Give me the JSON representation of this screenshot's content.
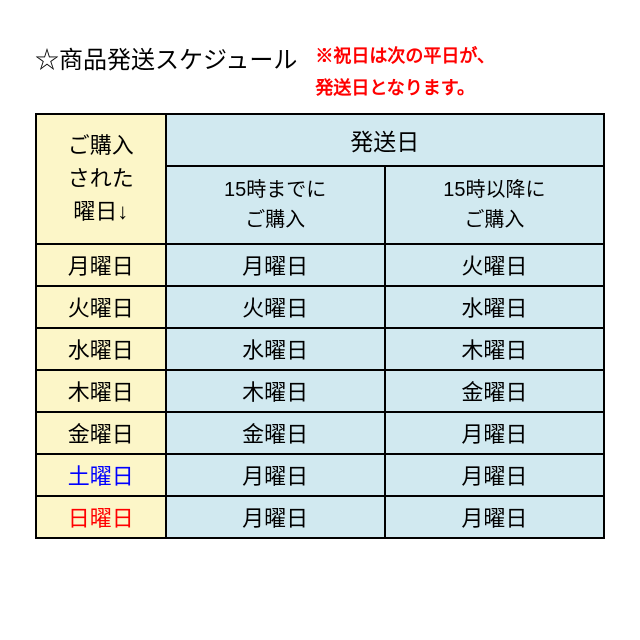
{
  "title": "☆商品発送スケジュール",
  "note_line1": "※祝日は次の平日が、",
  "note_line2": "発送日となります。",
  "headers": {
    "purchase_day_l1": "ご購入",
    "purchase_day_l2": "された",
    "purchase_day_l3": "曜日↓",
    "ship_day": "発送日",
    "before15_l1": "15時までに",
    "before15_l2": "ご購入",
    "after15_l1": "15時以降に",
    "after15_l2": "ご購入"
  },
  "rows": [
    {
      "day": "月曜日",
      "before": "月曜日",
      "after": "火曜日",
      "cls": ""
    },
    {
      "day": "火曜日",
      "before": "火曜日",
      "after": "水曜日",
      "cls": ""
    },
    {
      "day": "水曜日",
      "before": "水曜日",
      "after": "木曜日",
      "cls": ""
    },
    {
      "day": "木曜日",
      "before": "木曜日",
      "after": "金曜日",
      "cls": ""
    },
    {
      "day": "金曜日",
      "before": "金曜日",
      "after": "月曜日",
      "cls": ""
    },
    {
      "day": "土曜日",
      "before": "月曜日",
      "after": "月曜日",
      "cls": "saturday"
    },
    {
      "day": "日曜日",
      "before": "月曜日",
      "after": "月曜日",
      "cls": "sunday"
    }
  ],
  "colors": {
    "purchase_bg": "#fcf6c8",
    "ship_bg": "#d1e9f0",
    "border": "#000000",
    "note": "#ff0000",
    "saturday": "#0000ff",
    "sunday": "#ff0000"
  }
}
